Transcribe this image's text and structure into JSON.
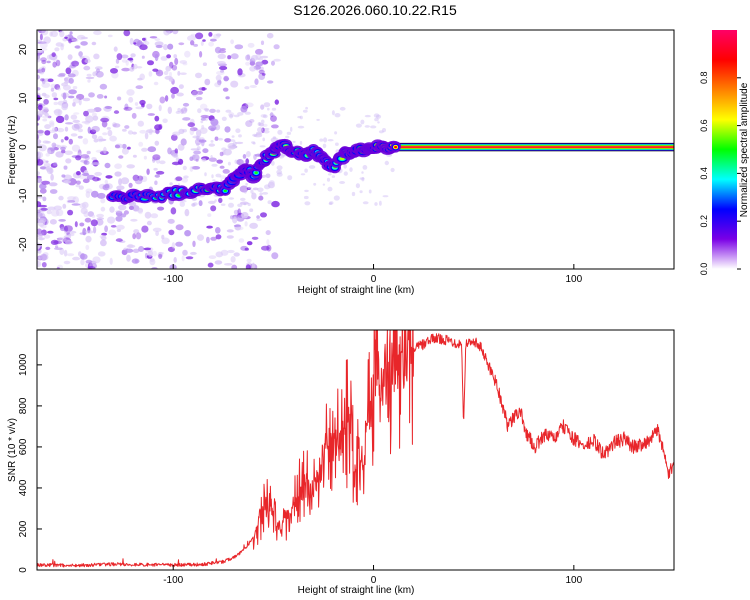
{
  "title": "S126.2026.060.10.22.R15",
  "chart_data": [
    {
      "type": "heatmap",
      "xlabel": "Height of straight line (km)",
      "ylabel": "Frequency (Hz)",
      "xlim": [
        -168,
        150
      ],
      "ylim": [
        -25,
        24
      ],
      "xticks": [
        -100,
        0,
        100
      ],
      "yticks": [
        -20,
        -10,
        0,
        10,
        20
      ],
      "colorbar": {
        "label": "Normalized spectral amplitude",
        "range": [
          0,
          1
        ],
        "ticks": [
          0.0,
          0.2,
          0.4,
          0.6,
          0.8
        ],
        "colormap": [
          "#ffffff",
          "#7a00e6",
          "#0000ff",
          "#00ffff",
          "#00ff00",
          "#ffff00",
          "#ff8000",
          "#ff0000",
          "#ff0066"
        ]
      },
      "ridge": {
        "x": [
          -130,
          -120,
          -110,
          -100,
          -90,
          -80,
          -74,
          -68,
          -64,
          -60,
          -55,
          -50,
          -45,
          -40,
          -35,
          -30,
          -25,
          -20,
          -15,
          -10,
          -5,
          0,
          5,
          12,
          150
        ],
        "y": [
          -10,
          -10.2,
          -10,
          -9.5,
          -9,
          -8.5,
          -8.5,
          -6,
          -4,
          -6,
          -3,
          -1,
          0.5,
          -1,
          -1.5,
          -1,
          -2.5,
          -4,
          -1.5,
          -0.8,
          -0.5,
          -0.3,
          0,
          0,
          0
        ],
        "amplitude": [
          0.45,
          0.4,
          0.5,
          0.5,
          0.55,
          0.7,
          0.5,
          0.4,
          0.45,
          0.5,
          0.55,
          0.6,
          0.6,
          0.65,
          0.6,
          0.55,
          0.5,
          0.55,
          0.6,
          0.7,
          0.75,
          0.8,
          0.85,
          0.9,
          1.0
        ]
      }
    },
    {
      "type": "line",
      "xlabel": "Height of straight line (km)",
      "ylabel": "SNR (10 * v/v)",
      "xlim": [
        -168,
        150
      ],
      "ylim": [
        0,
        1170
      ],
      "xticks": [
        -100,
        0,
        100
      ],
      "yticks": [
        0,
        200,
        400,
        600,
        800,
        1000
      ],
      "color": "#e8262a",
      "series": [
        {
          "x": [
            -168,
            -150,
            -130,
            -110,
            -95,
            -85,
            -75,
            -68,
            -62,
            -57,
            -53,
            -50,
            -48,
            -45,
            -40,
            -35,
            -30,
            -25,
            -20,
            -15,
            -12,
            -10,
            -6,
            -3,
            -1,
            1,
            5,
            10,
            15,
            20,
            25,
            30,
            35,
            40,
            44,
            45,
            46,
            50,
            54,
            57,
            60,
            64,
            67,
            70,
            73,
            77,
            81,
            85,
            90,
            95,
            100,
            105,
            110,
            115,
            120,
            125,
            130,
            135,
            139,
            142,
            145,
            147,
            150
          ],
          "y": [
            25,
            22,
            28,
            25,
            25,
            28,
            40,
            70,
            130,
            210,
            350,
            300,
            200,
            220,
            300,
            420,
            380,
            550,
            600,
            650,
            780,
            550,
            500,
            700,
            850,
            900,
            950,
            1000,
            1050,
            1080,
            1100,
            1130,
            1125,
            1110,
            1100,
            700,
            1100,
            1120,
            1080,
            1000,
            950,
            820,
            700,
            740,
            780,
            650,
            600,
            660,
            640,
            700,
            640,
            600,
            630,
            560,
            620,
            640,
            600,
            620,
            640,
            690,
            560,
            470,
            500
          ]
        }
      ]
    }
  ]
}
